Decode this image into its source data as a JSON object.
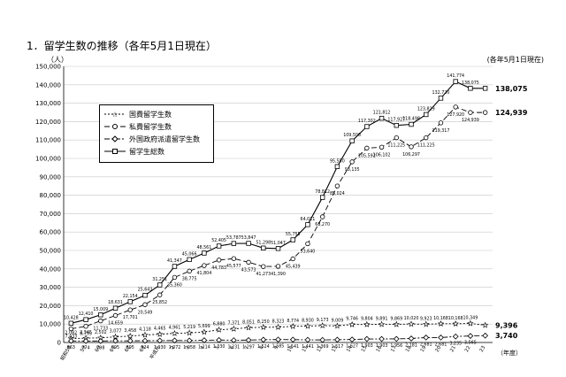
{
  "title": "1．留学生数の推移（各年5月1日現在）",
  "date_note": "(各年5月1日現在)",
  "chart_data": {
    "type": "line",
    "ylabel": "（人）",
    "xlabel": "（年度）",
    "ylim": [
      0,
      150000
    ],
    "yticks": [
      0,
      10000,
      20000,
      30000,
      40000,
      50000,
      60000,
      70000,
      80000,
      90000,
      100000,
      110000,
      120000,
      130000,
      140000,
      150000
    ],
    "ytick_labels": [
      "0",
      "10,000",
      "20,000",
      "30,000",
      "40,000",
      "50,000",
      "60,000",
      "70,000",
      "80,000",
      "90,000",
      "100,000",
      "110,000",
      "120,000",
      "130,000",
      "140,000",
      "150,000"
    ],
    "categories": [
      "昭和58",
      "59",
      "60",
      "61",
      "62",
      "63",
      "平成元",
      "2",
      "3",
      "4",
      "5",
      "6",
      "7",
      "8",
      "9",
      "10",
      "11",
      "12",
      "13",
      "14",
      "15",
      "16",
      "17",
      "18",
      "19",
      "20",
      "21",
      "22",
      "23"
    ],
    "grid": true,
    "legend_position": "upper-left",
    "series": [
      {
        "name": "国費留学生数",
        "marker": "star",
        "dash": "2,2",
        "values": [
          2082,
          2345,
          2502,
          3077,
          3458,
          4118,
          4465,
          4961,
          5219,
          5699,
          6880,
          7371,
          8051,
          8250,
          8323,
          8774,
          8930,
          9173,
          9009,
          9746,
          9804,
          9891,
          9869,
          10020,
          9923,
          10168,
          10168,
          10349,
          9396
        ],
        "labels": [
          "2,082",
          "2,345",
          "2,502",
          "3,077",
          "3,458",
          "4,118",
          "4,465",
          "4,961",
          "5,219",
          "5,699",
          "6,880",
          "7,371",
          "8,051",
          "8,250",
          "8,323",
          "8,774",
          "8,930",
          "9,173",
          "9,009",
          "9,746",
          "9,804",
          "9,891",
          "9,869",
          "10,020",
          "9,923",
          "10,168",
          "10,168",
          "10,349",
          "9,396"
        ]
      },
      {
        "name": "私費留学生数",
        "marker": "circle",
        "dash": "6,3",
        "values": [
          7433,
          8799,
          11733,
          14659,
          17701,
          20549,
          25852,
          35360,
          38775,
          41804,
          44783,
          45577,
          43573,
          41273,
          41390,
          45439,
          53640,
          68270,
          85024,
          98135,
          105592,
          106102,
          111225,
          106297,
          111225,
          119317,
          127920,
          124939,
          124939
        ],
        "labels": [
          "7,433",
          "8,799",
          "11,733",
          "14,659",
          "17,701",
          "20,549",
          "25,852",
          "35,360",
          "38,775",
          "41,804",
          "44,783",
          "45,577",
          "43,573",
          "41,273",
          "41,390",
          "45,439",
          "53,640",
          "68,270",
          "85,024",
          "98,135",
          "105,592",
          "106,102",
          "111,225",
          "106,297",
          "111,225",
          "119,317",
          "127,920",
          "124,939",
          "124,939"
        ]
      },
      {
        "name": "外国政府派遣留学生数",
        "marker": "diamond",
        "dash": "6,2,2,2",
        "values": [
          863,
          774,
          798,
          895,
          895,
          924,
          1030,
          1072,
          1058,
          1214,
          1330,
          1231,
          1297,
          1524,
          1585,
          1541,
          1441,
          1369,
          1517,
          1627,
          1903,
          1903,
          1956,
          2181,
          2681,
          2681,
          3235,
          3565,
          3740
        ],
        "labels": [
          "863",
          "774",
          "798",
          "895",
          "895",
          "924",
          "1,030",
          "1,072",
          "1,058",
          "1,214",
          "1,330",
          "1,231",
          "1,297",
          "1,524",
          "1,585",
          "1,541",
          "1,441",
          "1,369",
          "1,517",
          "1,627",
          "1,903",
          "1,903",
          "1,956",
          "2,181",
          "2,681",
          "2,681",
          "3,235",
          "3,565",
          "3,740"
        ]
      },
      {
        "name": "留学生総数",
        "marker": "square",
        "dash": "",
        "values": [
          10428,
          12410,
          15009,
          18631,
          22154,
          25643,
          31251,
          41347,
          45066,
          48561,
          52405,
          53787,
          53847,
          51298,
          51047,
          55755,
          64011,
          78812,
          95550,
          109508,
          117302,
          121812,
          117927,
          118498,
          123829,
          132720,
          141774,
          138075,
          138075
        ],
        "labels": [
          "10,428",
          "12,410",
          "15,009",
          "18,631",
          "22,154",
          "25,643",
          "31,251",
          "41,347",
          "45,066",
          "48,561",
          "52,405",
          "53,787",
          "53,847",
          "51,298",
          "51,047",
          "55,755",
          "64,011",
          "78,812",
          "95,550",
          "109,508",
          "117,302",
          "121,812",
          "117,927",
          "118,498",
          "123,829",
          "132,720",
          "141,774",
          "138,075",
          "138,075"
        ]
      }
    ],
    "end_labels": [
      "138,075",
      "124,939",
      "9,396",
      "3,740"
    ]
  }
}
